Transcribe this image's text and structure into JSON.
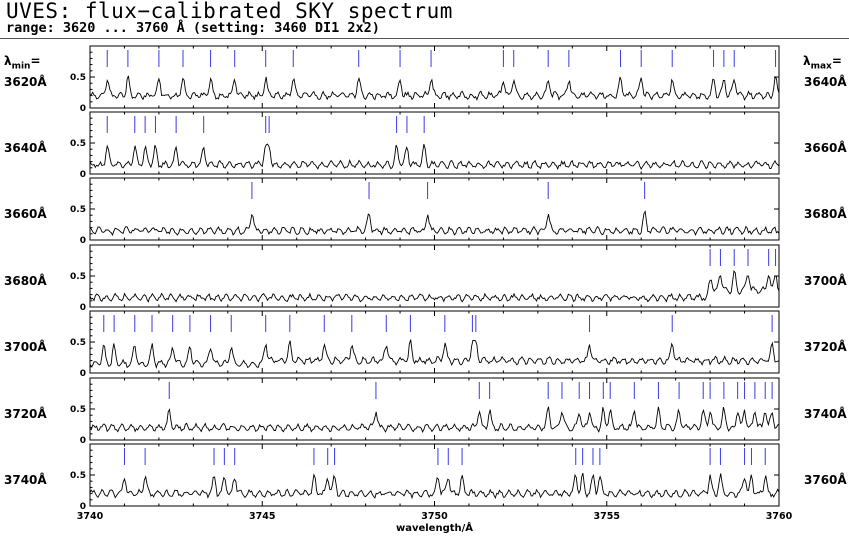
{
  "title": "UVES: flux−calibrated SKY spectrum",
  "subtitle": "range: 3620 ... 3760 Å (setting: 3460 DI1 2x2)",
  "lambda_min_label": "λ",
  "lambda_min_sub": "min",
  "lambda_min_eq": "=",
  "lambda_max_label": "λ",
  "lambda_max_sub": "max",
  "lambda_max_eq": "=",
  "colors": {
    "spectrum": "#000000",
    "sky_lines": "#3a3ae6",
    "frame": "#000000"
  },
  "chart_data": {
    "type": "line",
    "title": "UVES: flux−calibrated SKY spectrum",
    "xlabel": "wavelength/Å",
    "ylabel": "",
    "x_offset_ticks": [
      "3740",
      "3745",
      "3750",
      "3755",
      "3760"
    ],
    "panel_width_angstrom": 20,
    "ylim": [
      0,
      1.0
    ],
    "yticks": [
      "0",
      "0.5"
    ],
    "grid": false,
    "panels": [
      {
        "lambda_min": "3620Å",
        "lambda_max": "3640Å",
        "start": 3620,
        "lines": [
          3620.5,
          3621.1,
          3622.0,
          3622.7,
          3623.5,
          3624.2,
          3625.1,
          3625.9,
          3627.8,
          3629.0,
          3629.9,
          3632.0,
          3632.3,
          3633.3,
          3633.9,
          3635.4,
          3636.0,
          3636.9,
          3638.1,
          3638.4,
          3638.7,
          3639.9
        ]
      },
      {
        "lambda_min": "3640Å",
        "lambda_max": "3660Å",
        "start": 3640,
        "lines": [
          3640.5,
          3641.3,
          3641.6,
          3641.9,
          3642.5,
          3643.3,
          3645.1,
          3645.2,
          3648.9,
          3649.2,
          3649.7
        ]
      },
      {
        "lambda_min": "3660Å",
        "lambda_max": "3680Å",
        "start": 3660,
        "lines": [
          3664.7,
          3668.1,
          3669.8,
          3673.3,
          3676.1
        ]
      },
      {
        "lambda_min": "3680Å",
        "lambda_max": "3700Å",
        "start": 3680,
        "lines": [
          3698.0,
          3698.3,
          3698.7,
          3699.1,
          3699.7,
          3699.9
        ]
      },
      {
        "lambda_min": "3700Å",
        "lambda_max": "3720Å",
        "start": 3700,
        "lines": [
          3700.4,
          3700.7,
          3701.3,
          3701.8,
          3702.4,
          3702.9,
          3703.5,
          3704.1,
          3705.1,
          3705.8,
          3706.8,
          3707.6,
          3708.6,
          3709.3,
          3710.3,
          3711.1,
          3711.2,
          3714.5,
          3716.9,
          3719.8
        ]
      },
      {
        "lambda_min": "3720Å",
        "lambda_max": "3740Å",
        "start": 3720,
        "lines": [
          3722.3,
          3728.3,
          3731.3,
          3731.6,
          3733.3,
          3733.7,
          3734.2,
          3734.5,
          3734.9,
          3735.1,
          3735.8,
          3736.5,
          3737.1,
          3737.8,
          3738.0,
          3738.4,
          3738.8,
          3739.0,
          3739.3,
          3739.6,
          3739.8
        ]
      },
      {
        "lambda_min": "3740Å",
        "lambda_max": "3760Å",
        "start": 3740,
        "lines": [
          3741.0,
          3741.6,
          3743.6,
          3743.9,
          3744.2,
          3746.5,
          3746.9,
          3747.1,
          3750.1,
          3750.4,
          3750.8,
          3754.1,
          3754.3,
          3754.6,
          3754.8,
          3758.0,
          3758.3,
          3759.0,
          3759.2,
          3759.6
        ]
      }
    ]
  }
}
